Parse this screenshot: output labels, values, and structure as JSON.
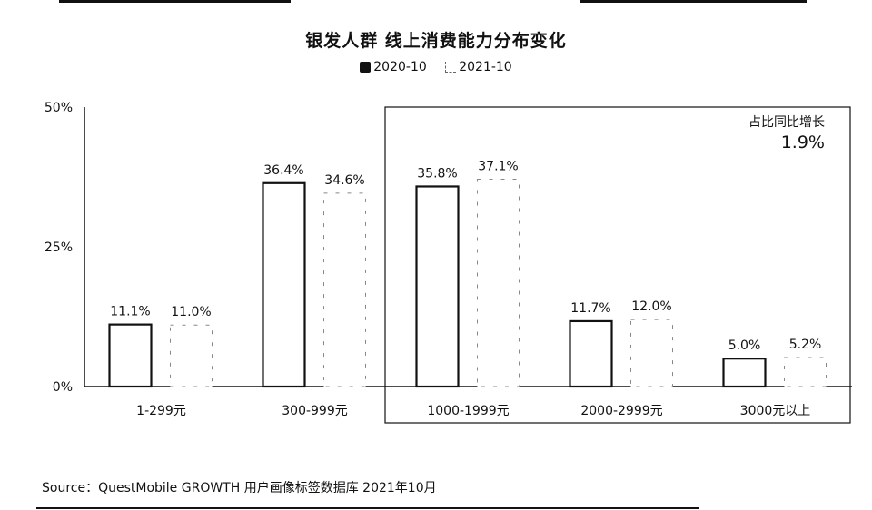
{
  "chart_data": {
    "type": "bar",
    "title": "银发人群 线上消费能力分布变化",
    "categories": [
      "1-299元",
      "300-999元",
      "1000-1999元",
      "2000-2999元",
      "3000元以上"
    ],
    "series": [
      {
        "name": "2020-10",
        "values": [
          11.1,
          36.4,
          35.8,
          11.7,
          5.0
        ]
      },
      {
        "name": "2021-10",
        "values": [
          11.0,
          34.6,
          37.1,
          12.0,
          5.2
        ]
      }
    ],
    "value_labels": [
      [
        "11.1%",
        "36.4%",
        "35.8%",
        "11.7%",
        "5.0%"
      ],
      [
        "11.0%",
        "34.6%",
        "37.1%",
        "12.0%",
        "5.2%"
      ]
    ],
    "yticks": [
      "0%",
      "25%",
      "50%"
    ],
    "ylim": [
      0,
      50
    ],
    "grid": false,
    "legend_position": "top-center",
    "annotation": {
      "label": "占比同比增长",
      "value": "1.9%"
    },
    "colors": {
      "series_2020": "#111111",
      "series_2021": "#888888",
      "bar_fill": "#ffffff"
    }
  },
  "source": "Source：QuestMobile GROWTH 用户画像标签数据库 2021年10月"
}
